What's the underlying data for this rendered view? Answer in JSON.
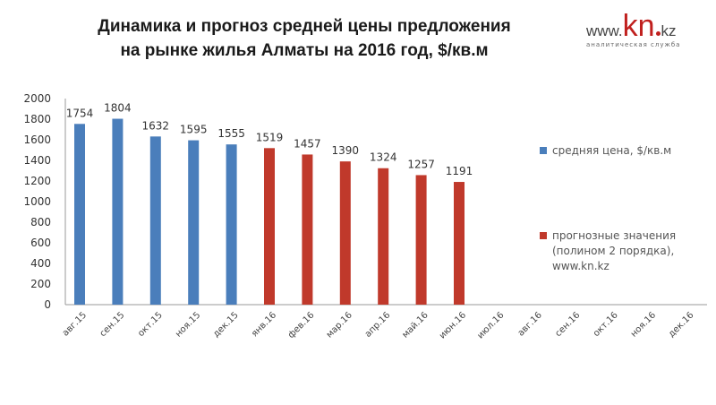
{
  "title_line1": "Динамика и прогноз средней цены предложения",
  "title_line2": "на рынке жилья Алматы на 2016 год, $/кв.м",
  "logo": {
    "www": "www.",
    "kn": "kn",
    "kz": "kz",
    "subtitle": "аналитическая служба"
  },
  "legend": {
    "actual": {
      "label": "средняя цена, $/кв.м",
      "color": "#4a7ebb"
    },
    "forecast": {
      "line1": "прогнозные значения",
      "line2": "(полином 2 порядка),",
      "line3": "www.kn.kz",
      "color": "#c0392b"
    }
  },
  "chart_data": {
    "type": "bar",
    "title": "Динамика и прогноз средней цены предложения на рынке жилья Алматы на 2016 год, $/кв.м",
    "categories": [
      "авг.15",
      "сен.15",
      "окт.15",
      "ноя.15",
      "дек.15",
      "янв.16",
      "фев.16",
      "мар.16",
      "апр.16",
      "май.16",
      "июн.16",
      "июл.16",
      "авг.16",
      "сен.16",
      "окт.16",
      "ноя.16",
      "дек.16"
    ],
    "series": [
      {
        "name": "средняя цена, $/кв.м",
        "color": "#4a7ebb",
        "values": [
          1754,
          1804,
          1632,
          1595,
          1555,
          null,
          null,
          null,
          null,
          null,
          null,
          null,
          null,
          null,
          null,
          null,
          null
        ]
      },
      {
        "name": "прогнозные значения (полином 2 порядка), www.kn.kz",
        "color": "#c0392b",
        "values": [
          null,
          null,
          null,
          null,
          null,
          1519,
          1457,
          1390,
          1324,
          1257,
          1191,
          null,
          null,
          null,
          null,
          null,
          null
        ]
      }
    ],
    "yticks": [
      "0",
      "200",
      "400",
      "600",
      "800",
      "1000",
      "1200",
      "1400",
      "1600",
      "1800",
      "2000"
    ],
    "ylim": [
      0,
      2000
    ],
    "xlabel": "",
    "ylabel": "",
    "grid": false,
    "legend_position": "right"
  }
}
